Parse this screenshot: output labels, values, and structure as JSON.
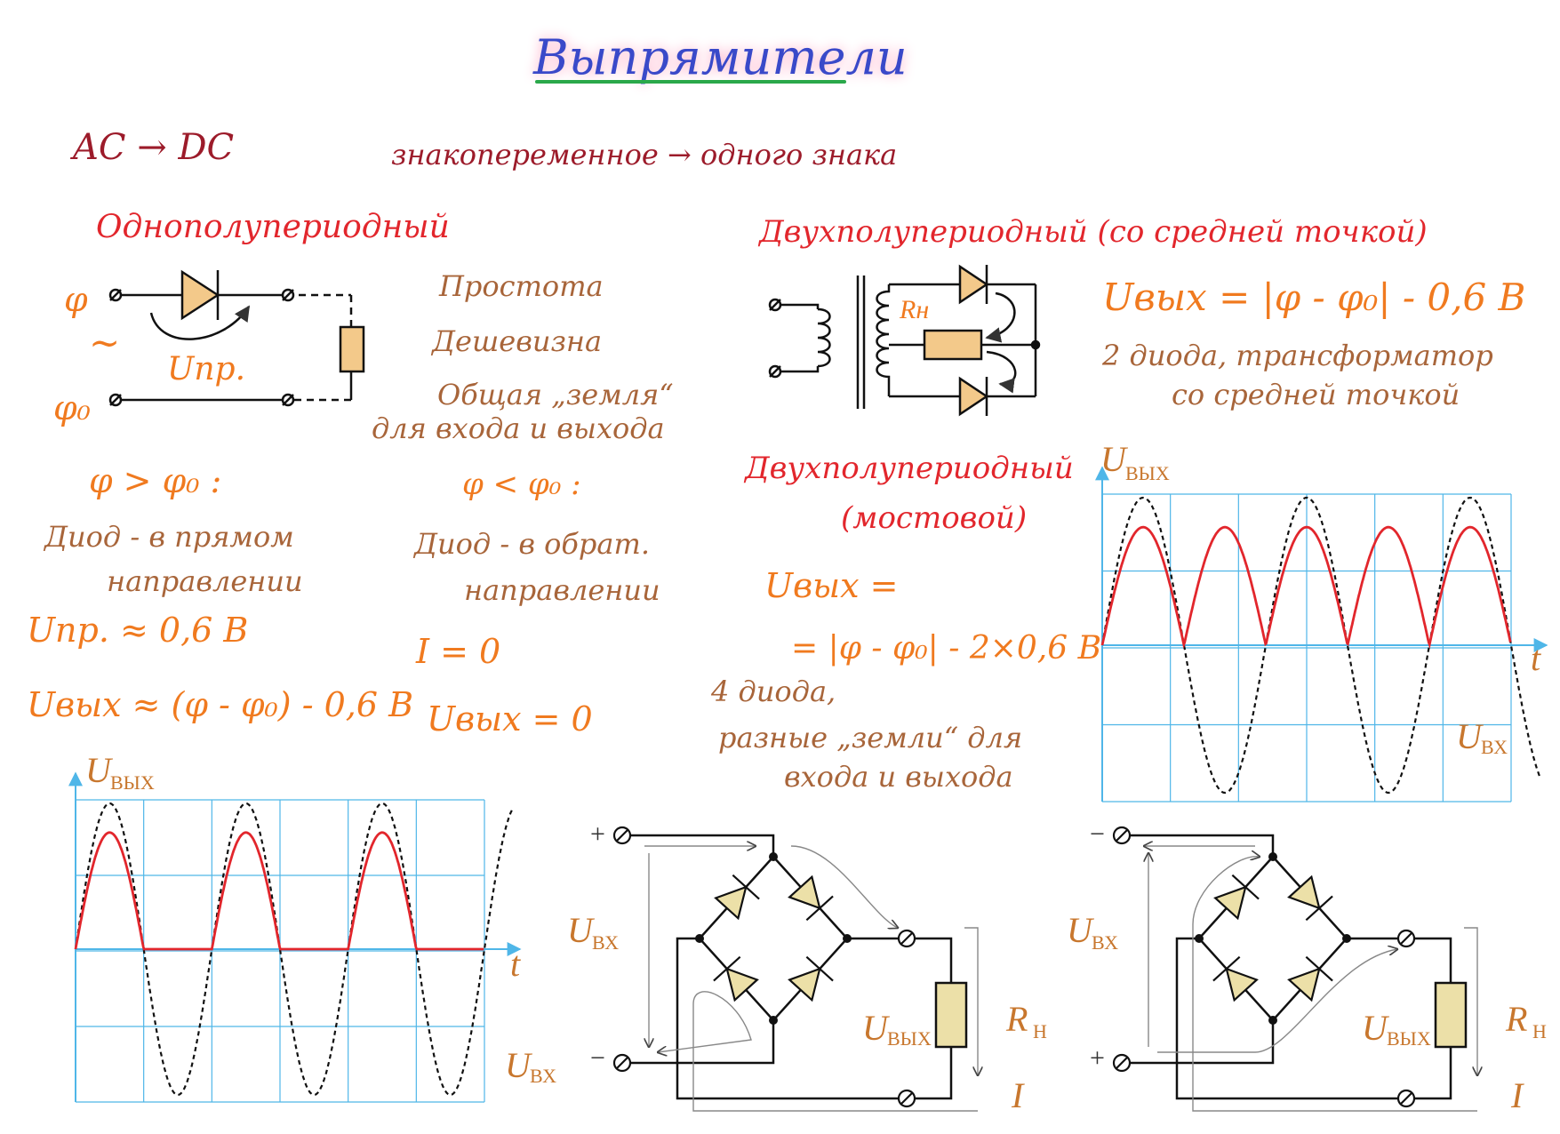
{
  "title": "Выпрямители",
  "colors": {
    "title": "#3949c9",
    "heading": "#e2262c",
    "note": "#f07a1f",
    "text": "#a8653a",
    "wave_out": "#e2262c",
    "wave_in": "#111111",
    "grid": "#4fb6e8",
    "diode_fill": "#ece0a8"
  },
  "intro": {
    "ac_dc": "AC → DC",
    "sign_change": "знакопеременное → одного знака"
  },
  "half_wave": {
    "heading": "Однополупериодный",
    "phi": "φ",
    "phi0": "φ₀",
    "tilde": "~",
    "u_pr": "Uпр.",
    "pros": [
      "Простота",
      "Дешевизна",
      "Общая „земля“",
      "для входа и выхода"
    ],
    "case_pos": {
      "cond": "φ > φ₀ :",
      "line1": "Диод - в прямом",
      "line2": "направлении"
    },
    "case_neg": {
      "cond": "φ < φ₀ :",
      "line1": "Диод - в обрат.",
      "line2": "направлении"
    },
    "u_pr_val": "Uпр. ≈ 0,6 В",
    "u_out_formula": "Uвых ≈ (φ - φ₀) - 0,6 В",
    "i_zero": "I = 0",
    "u_out_zero": "Uвых = 0",
    "graph": {
      "y_label": "U",
      "y_sub": "ВЫХ",
      "x_label": "t",
      "in_label": "U",
      "in_sub": "ВХ"
    }
  },
  "full_wave_mid": {
    "heading": "Двухполупериодный (со средней точкой)",
    "r_label": "Rн",
    "formula": "Uвых = |φ - φ₀| - 0,6 В",
    "note_line1": "2 диода, трансформатор",
    "note_line2": "со средней точкой"
  },
  "full_wave_bridge": {
    "heading_line1": "Двухполупериодный",
    "heading_line2": "(мостовой)",
    "formula_line1": "Uвых =",
    "formula_line2": "= |φ - φ₀| - 2×0,6 В",
    "note_line1": "4 диода,",
    "note_line2": "разные „земли“ для",
    "note_line3": "входа и выхода",
    "graph": {
      "y_label": "U",
      "y_sub": "ВЫХ",
      "x_label": "t",
      "in_label": "U",
      "in_sub": "ВХ"
    }
  },
  "bridge_left": {
    "plus": "+",
    "minus": "−",
    "u_in": "U",
    "u_in_sub": "ВХ",
    "u_out": "U",
    "u_out_sub": "ВЫХ",
    "r": "R",
    "r_sub": "Н",
    "i": "I"
  },
  "bridge_right": {
    "plus": "+",
    "minus": "−",
    "u_in": "U",
    "u_in_sub": "ВХ",
    "u_out": "U",
    "u_out_sub": "ВЫХ",
    "r": "R",
    "r_sub": "Н",
    "i": "I"
  }
}
